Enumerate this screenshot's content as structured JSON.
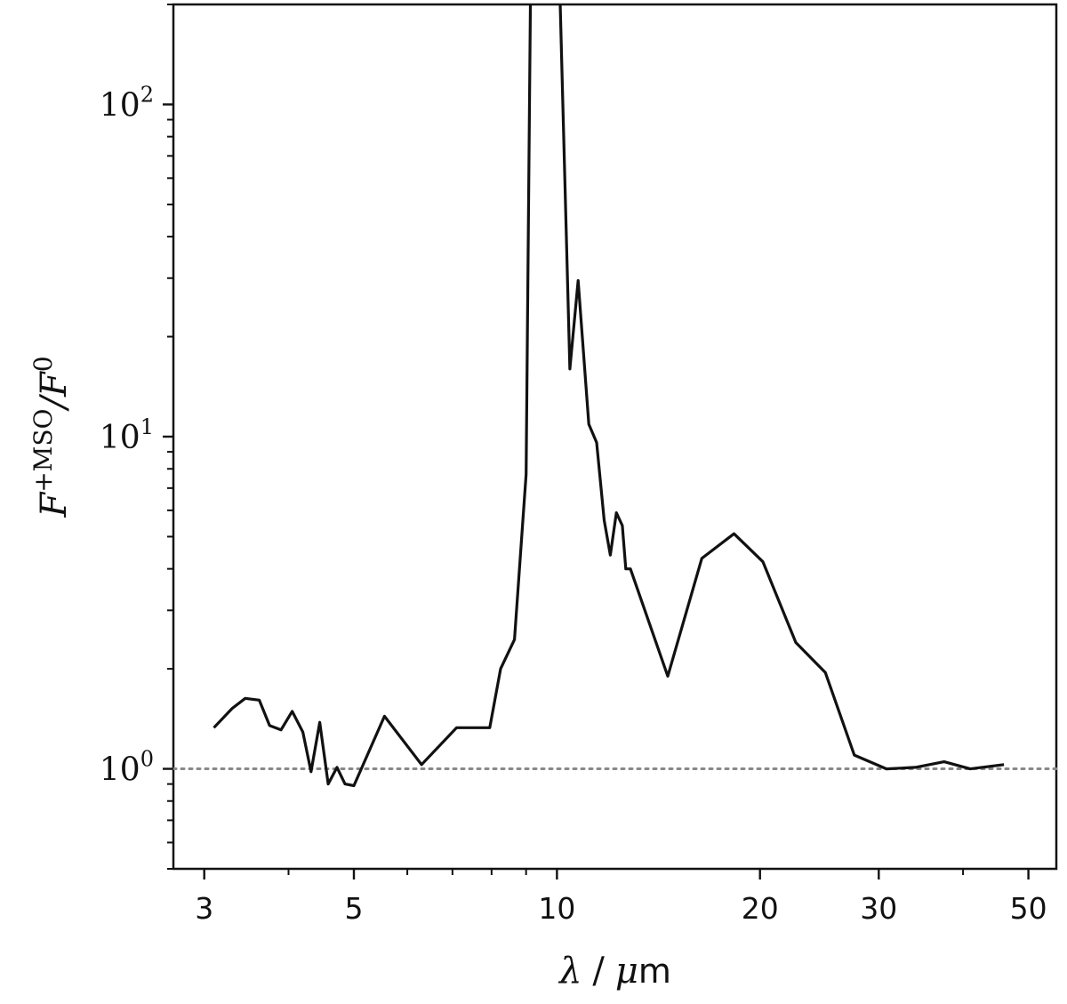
{
  "chart_data": {
    "type": "line",
    "title": "",
    "xlabel": "λ / μm",
    "xlabel_parts": {
      "symbol": "λ",
      "sep": "/",
      "unit_mu": "μ",
      "unit_m": "m"
    },
    "ylabel": "F^{+MSO}/F^{0}",
    "ylabel_parts": {
      "F1": "F",
      "sup1": "+MSO",
      "slash": "/F",
      "sup2": "0"
    },
    "xscale": "log",
    "yscale": "log",
    "xlim": [
      2.7,
      55
    ],
    "ylim": [
      0.5,
      200
    ],
    "xticks": [
      {
        "value": 3,
        "label": "3"
      },
      {
        "value": 5,
        "label": "5"
      },
      {
        "value": 10,
        "label": "10"
      },
      {
        "value": 20,
        "label": "20"
      },
      {
        "value": 30,
        "label": "30"
      },
      {
        "value": 50,
        "label": "50"
      }
    ],
    "yticks": [
      {
        "value": 1,
        "base": "10",
        "exp": "0"
      },
      {
        "value": 10,
        "base": "10",
        "exp": "1"
      },
      {
        "value": 100,
        "base": "10",
        "exp": "2"
      }
    ],
    "grid": false,
    "reference_line": {
      "y": 1.0,
      "style": "dotted",
      "color": "#888888"
    },
    "series": [
      {
        "color": "#111111",
        "x": [
          3.1,
          3.3,
          3.45,
          3.62,
          3.75,
          3.9,
          4.05,
          4.2,
          4.32,
          4.45,
          4.58,
          4.72,
          4.85,
          5.0,
          5.55,
          6.3,
          7.1,
          7.95,
          8.25,
          8.65,
          9.0,
          9.2,
          9.9,
          10.45,
          10.75,
          11.15,
          11.45,
          11.75,
          12.0,
          12.25,
          12.5,
          12.65,
          12.85,
          14.6,
          16.4,
          18.3,
          20.2,
          22.6,
          25.0,
          27.6,
          30.8,
          34.0,
          37.5,
          41.0,
          46.0
        ],
        "y": [
          1.33,
          1.52,
          1.63,
          1.61,
          1.35,
          1.31,
          1.49,
          1.29,
          0.98,
          1.38,
          0.9,
          1.01,
          0.9,
          0.89,
          1.44,
          1.03,
          1.33,
          1.33,
          2.0,
          2.45,
          7.7,
          1000,
          1000,
          16.0,
          29.5,
          10.9,
          9.6,
          5.6,
          4.4,
          5.9,
          5.4,
          4.0,
          4.0,
          1.9,
          4.3,
          5.1,
          4.2,
          2.4,
          1.95,
          1.1,
          1.0,
          1.01,
          1.05,
          1.0,
          1.03
        ]
      }
    ]
  }
}
